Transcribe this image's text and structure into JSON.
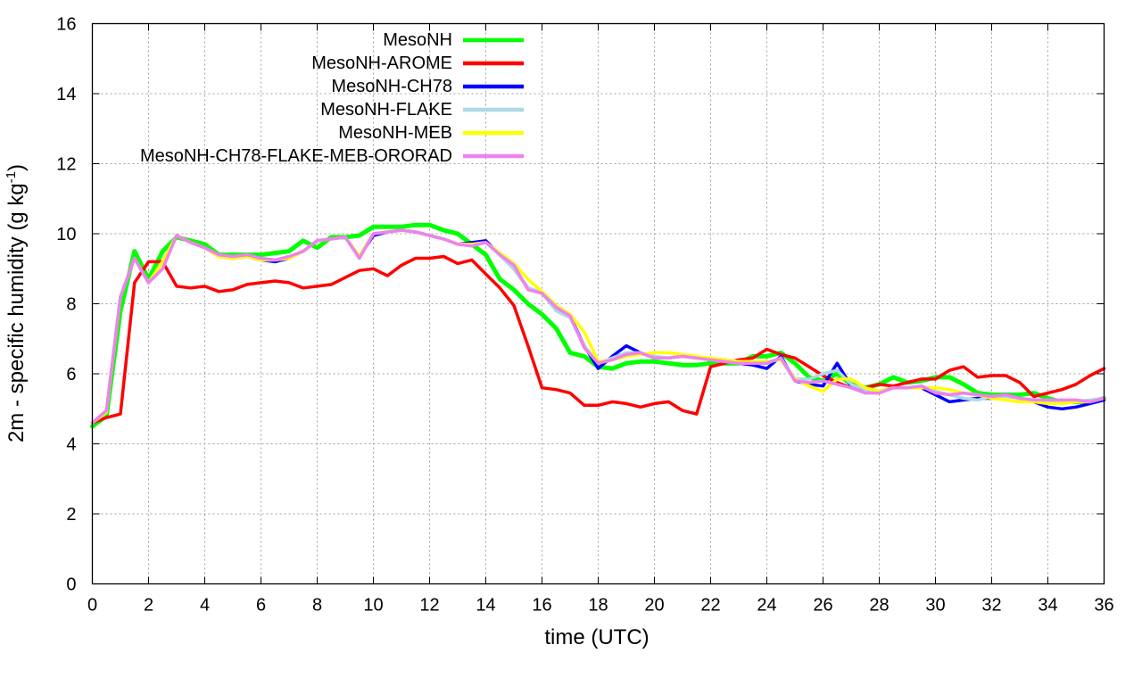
{
  "chart_data": {
    "type": "line",
    "xlabel": "time (UTC)",
    "ylabel_main": "2m - specific humidity (g kg",
    "ylabel_sup": "-1",
    "ylabel_end": ")",
    "xlim": [
      0,
      36
    ],
    "ylim": [
      0,
      16
    ],
    "xticks": [
      0,
      2,
      4,
      6,
      8,
      10,
      12,
      14,
      16,
      18,
      20,
      22,
      24,
      26,
      28,
      30,
      32,
      34,
      36
    ],
    "yticks": [
      0,
      2,
      4,
      6,
      8,
      10,
      12,
      14,
      16
    ],
    "grid": true,
    "legend_position": "top-left",
    "x": [
      0,
      0.5,
      1,
      1.5,
      2,
      2.5,
      3,
      3.5,
      4,
      4.5,
      5,
      5.5,
      6,
      6.5,
      7,
      7.5,
      8,
      8.5,
      9,
      9.5,
      10,
      10.5,
      11,
      11.5,
      12,
      12.5,
      13,
      13.5,
      14,
      14.5,
      15,
      15.5,
      16,
      16.5,
      17,
      17.5,
      18,
      18.5,
      19,
      19.5,
      20,
      20.5,
      21,
      21.5,
      22,
      22.5,
      23,
      23.5,
      24,
      24.5,
      25,
      25.5,
      26,
      26.5,
      27,
      27.5,
      28,
      28.5,
      29,
      29.5,
      30,
      30.5,
      31,
      31.5,
      32,
      32.5,
      33,
      33.5,
      34,
      34.5,
      35,
      35.5,
      36
    ],
    "series": [
      {
        "name": "MesoNH",
        "color": "#00ff00",
        "values": [
          4.5,
          4.8,
          7.8,
          9.5,
          8.7,
          9.5,
          9.9,
          9.8,
          9.7,
          9.4,
          9.4,
          9.4,
          9.4,
          9.45,
          9.5,
          9.8,
          9.6,
          9.9,
          9.9,
          9.95,
          10.2,
          10.2,
          10.2,
          10.25,
          10.25,
          10.1,
          10.0,
          9.7,
          9.4,
          8.7,
          8.4,
          8.0,
          7.7,
          7.3,
          6.6,
          6.5,
          6.2,
          6.15,
          6.3,
          6.35,
          6.35,
          6.3,
          6.25,
          6.25,
          6.3,
          6.3,
          6.3,
          6.5,
          6.5,
          6.6,
          6.3,
          5.9,
          5.8,
          6.0,
          5.7,
          5.6,
          5.7,
          5.9,
          5.75,
          5.8,
          5.9,
          5.9,
          5.7,
          5.45,
          5.4,
          5.4,
          5.4,
          5.45,
          5.3,
          5.2,
          5.2,
          5.2,
          5.3
        ]
      },
      {
        "name": "MesoNH-AROME",
        "color": "#ff0000",
        "values": [
          4.6,
          4.75,
          4.85,
          8.6,
          9.2,
          9.2,
          8.5,
          8.45,
          8.5,
          8.35,
          8.4,
          8.55,
          8.6,
          8.65,
          8.6,
          8.45,
          8.5,
          8.55,
          8.75,
          8.95,
          9.0,
          8.8,
          9.1,
          9.3,
          9.3,
          9.35,
          9.15,
          9.25,
          8.85,
          8.45,
          7.95,
          6.8,
          5.6,
          5.55,
          5.45,
          5.1,
          5.1,
          5.2,
          5.15,
          5.05,
          5.15,
          5.2,
          4.95,
          4.85,
          6.2,
          6.3,
          6.4,
          6.45,
          6.7,
          6.55,
          6.45,
          6.2,
          5.95,
          5.75,
          5.6,
          5.6,
          5.7,
          5.65,
          5.75,
          5.85,
          5.85,
          6.1,
          6.2,
          5.9,
          5.95,
          5.95,
          5.75,
          5.35,
          5.45,
          5.55,
          5.7,
          5.95,
          6.15
        ]
      },
      {
        "name": "MesoNH-CH78",
        "color": "#0000ff",
        "values": [
          4.6,
          4.9,
          8.2,
          9.3,
          8.6,
          9.2,
          9.95,
          9.75,
          9.6,
          9.35,
          9.3,
          9.35,
          9.25,
          9.2,
          9.3,
          9.5,
          9.8,
          9.85,
          9.9,
          9.35,
          9.95,
          10.05,
          10.1,
          10.05,
          9.95,
          9.85,
          9.7,
          9.75,
          9.8,
          9.4,
          9.0,
          8.45,
          8.3,
          7.85,
          7.65,
          6.8,
          6.15,
          6.5,
          6.8,
          6.6,
          6.45,
          6.45,
          6.5,
          6.45,
          6.4,
          6.4,
          6.3,
          6.25,
          6.15,
          6.5,
          5.8,
          5.7,
          5.65,
          6.3,
          5.65,
          5.55,
          5.5,
          5.6,
          5.6,
          5.6,
          5.4,
          5.2,
          5.25,
          5.3,
          5.3,
          5.4,
          5.3,
          5.2,
          5.05,
          5.0,
          5.05,
          5.15,
          5.25
        ]
      },
      {
        "name": "MesoNH-FLAKE",
        "color": "#add8e6",
        "values": [
          4.6,
          4.9,
          8.2,
          9.3,
          8.6,
          9.2,
          9.95,
          9.75,
          9.6,
          9.35,
          9.3,
          9.35,
          9.25,
          9.25,
          9.3,
          9.5,
          9.8,
          9.85,
          9.9,
          9.35,
          10.0,
          10.05,
          10.1,
          10.05,
          9.95,
          9.85,
          9.7,
          9.7,
          9.75,
          9.4,
          9.0,
          8.45,
          8.3,
          7.8,
          7.6,
          6.8,
          6.3,
          6.45,
          6.6,
          6.6,
          6.5,
          6.45,
          6.5,
          6.45,
          6.4,
          6.35,
          6.3,
          6.3,
          6.3,
          6.45,
          5.85,
          5.85,
          6.0,
          6.1,
          5.7,
          5.55,
          5.5,
          5.6,
          5.6,
          5.65,
          5.5,
          5.4,
          5.3,
          5.25,
          5.35,
          5.35,
          5.3,
          5.25,
          5.2,
          5.2,
          5.2,
          5.25,
          5.3
        ]
      },
      {
        "name": "MesoNH-MEB",
        "color": "#ffff00",
        "values": [
          4.6,
          4.9,
          8.2,
          9.3,
          8.6,
          9.2,
          9.95,
          9.75,
          9.6,
          9.35,
          9.3,
          9.35,
          9.25,
          9.25,
          9.3,
          9.5,
          9.8,
          9.85,
          9.9,
          9.35,
          10.0,
          10.05,
          10.1,
          10.05,
          9.95,
          9.85,
          9.7,
          9.7,
          9.75,
          9.45,
          9.15,
          8.7,
          8.35,
          7.95,
          7.7,
          7.2,
          6.35,
          6.4,
          6.5,
          6.55,
          6.6,
          6.6,
          6.55,
          6.5,
          6.45,
          6.4,
          6.35,
          6.35,
          6.35,
          6.4,
          5.85,
          5.65,
          5.5,
          5.85,
          5.85,
          5.6,
          5.5,
          5.6,
          5.6,
          5.6,
          5.6,
          5.55,
          5.45,
          5.4,
          5.3,
          5.25,
          5.2,
          5.2,
          5.15,
          5.15,
          5.2,
          5.2,
          5.3
        ]
      },
      {
        "name": "MesoNH-CH78-FLAKE-MEB-ORORAD",
        "color": "#ee82ee",
        "values": [
          4.6,
          4.95,
          8.2,
          9.3,
          8.6,
          9.0,
          9.95,
          9.75,
          9.6,
          9.4,
          9.35,
          9.4,
          9.3,
          9.25,
          9.35,
          9.5,
          9.8,
          9.85,
          9.9,
          9.3,
          10.0,
          10.05,
          10.1,
          10.05,
          9.95,
          9.85,
          9.7,
          9.65,
          9.75,
          9.4,
          9.1,
          8.4,
          8.3,
          7.9,
          7.65,
          6.75,
          6.3,
          6.4,
          6.55,
          6.6,
          6.45,
          6.45,
          6.5,
          6.45,
          6.4,
          6.35,
          6.3,
          6.3,
          6.3,
          6.45,
          5.8,
          5.75,
          5.8,
          5.7,
          5.6,
          5.45,
          5.45,
          5.6,
          5.6,
          5.65,
          5.45,
          5.4,
          5.45,
          5.4,
          5.35,
          5.4,
          5.3,
          5.25,
          5.25,
          5.25,
          5.25,
          5.2,
          5.3
        ]
      }
    ]
  }
}
